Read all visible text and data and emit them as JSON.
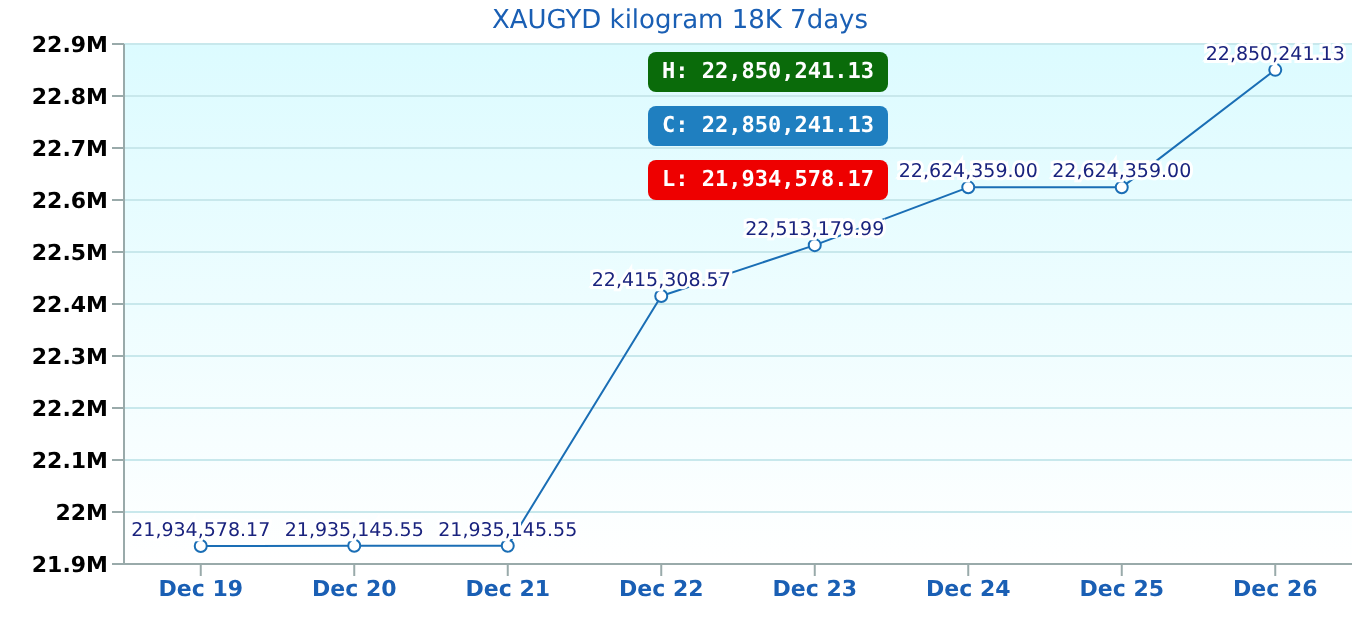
{
  "chart_data": {
    "type": "line",
    "title": "XAUGYD kilogram 18K 7days",
    "categories": [
      "Dec 19",
      "Dec 20",
      "Dec 21",
      "Dec 22",
      "Dec 23",
      "Dec 24",
      "Dec 25",
      "Dec 26"
    ],
    "series": [
      {
        "color": "#1a6eb5",
        "values": [
          21934578.17,
          21935145.55,
          21935145.55,
          22415308.57,
          22513179.99,
          22624359.0,
          22624359.0,
          22850241.13
        ],
        "value_labels": [
          "21,934,578.17",
          "21,935,145.55",
          "21,935,145.55",
          "22,415,308.57",
          "22,513,179.99",
          "22,624,359.00",
          "22,624,359.00",
          "22,850,241.13"
        ]
      }
    ],
    "ylim": [
      21900000,
      22900000
    ],
    "yticks": [
      {
        "value": 21900000,
        "label": "21.9M"
      },
      {
        "value": 22000000,
        "label": "22M"
      },
      {
        "value": 22100000,
        "label": "22.1M"
      },
      {
        "value": 22200000,
        "label": "22.2M"
      },
      {
        "value": 22300000,
        "label": "22.3M"
      },
      {
        "value": 22400000,
        "label": "22.4M"
      },
      {
        "value": 22500000,
        "label": "22.5M"
      },
      {
        "value": 22600000,
        "label": "22.6M"
      },
      {
        "value": 22700000,
        "label": "22.7M"
      },
      {
        "value": 22800000,
        "label": "22.8M"
      },
      {
        "value": 22900000,
        "label": "22.9M"
      }
    ],
    "grid": "y",
    "marker": "circle",
    "line_style": "solid",
    "annotations": [
      "H: 22,850,241.13",
      "C: 22,850,241.13",
      "L: 21,934,578.17"
    ]
  }
}
